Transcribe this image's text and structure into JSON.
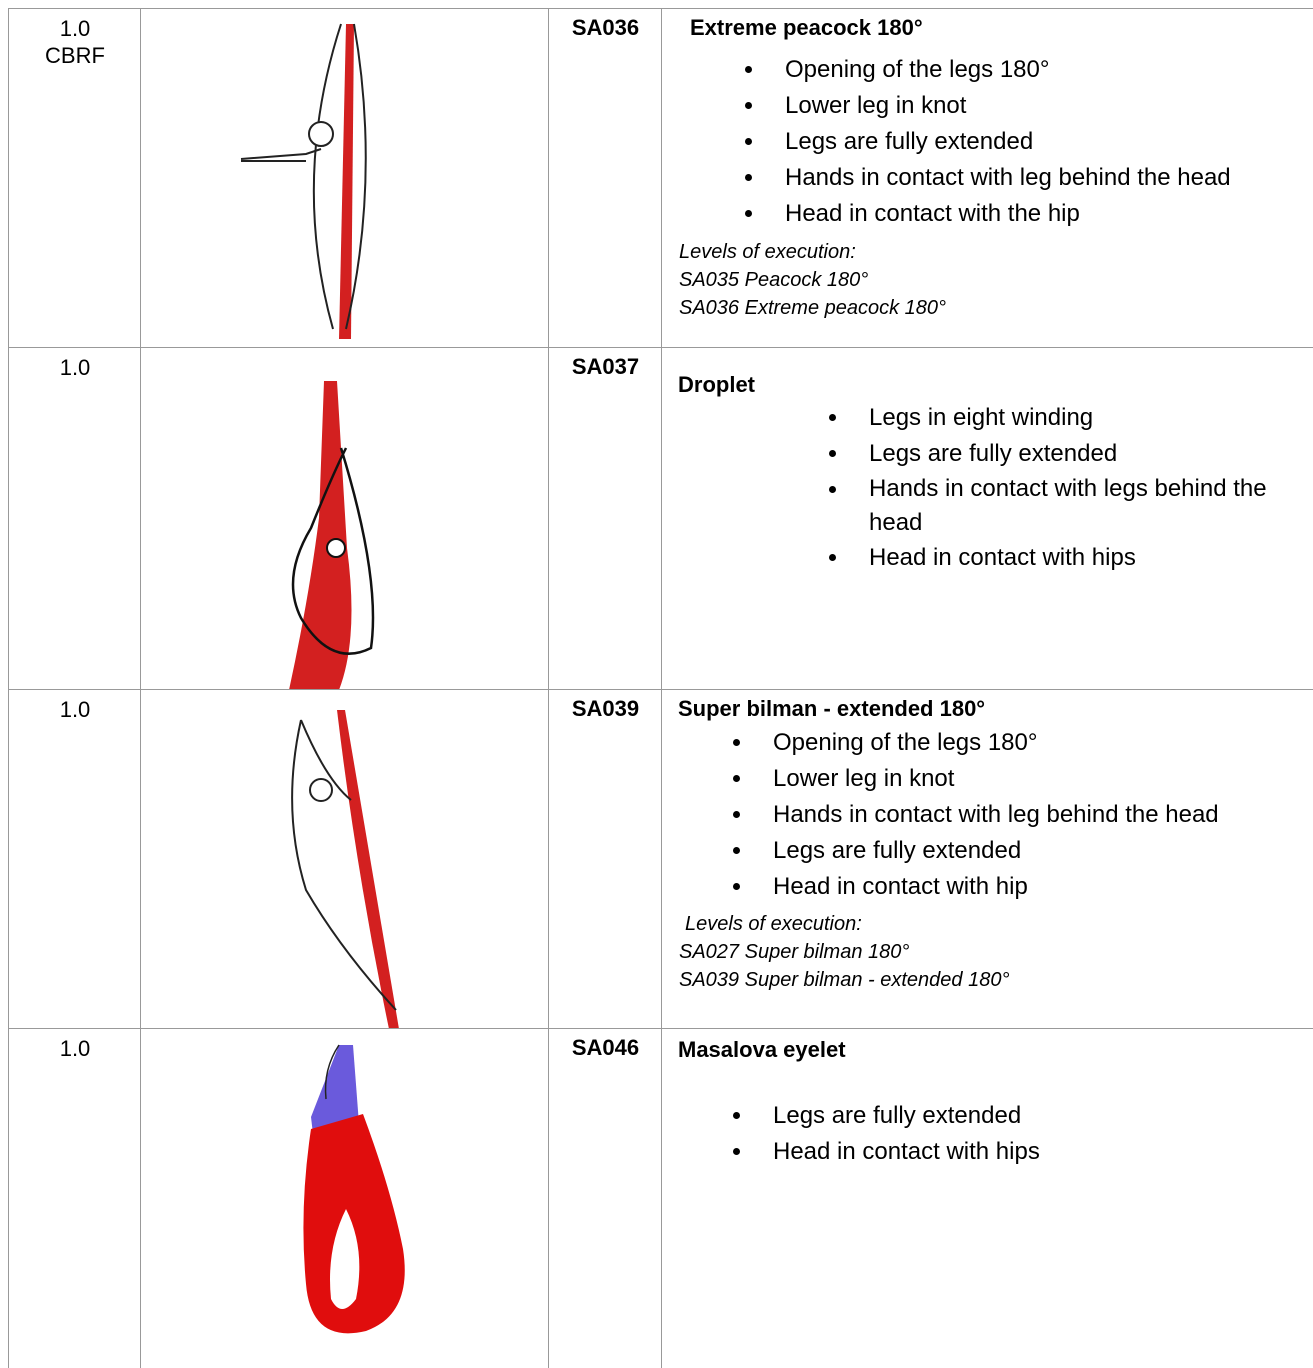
{
  "rows": [
    {
      "value": "1.0",
      "note": "CBRF",
      "code": "SA036",
      "title": "Extreme peacock 180°",
      "criteria": [
        "Opening of the legs 180°",
        "Lower leg in knot",
        "Legs are fully extended",
        "Hands in contact with leg behind the head",
        "Head in contact with the hip"
      ],
      "levels_heading": "Levels of execution:",
      "levels": [
        "SA035 Peacock 180°",
        "SA036 Extreme peacock 180°"
      ]
    },
    {
      "value": "1.0",
      "code": "SA037",
      "title": "Droplet",
      "criteria": [
        "Legs in eight winding",
        "Legs are fully extended",
        "Hands in contact with legs behind the head",
        "Head in contact with hips"
      ]
    },
    {
      "value": "1.0",
      "code": "SA039",
      "title": "Super bilman - extended 180°",
      "criteria": [
        "Opening of the legs 180°",
        "Lower leg in knot",
        "Hands in contact with leg behind the head",
        "Legs are fully extended",
        "Head in contact with hip"
      ],
      "levels_heading": "Levels of execution:",
      "levels": [
        "SA027 Super bilman 180°",
        "SA039 Super bilman - extended 180°"
      ]
    },
    {
      "value": "1.0",
      "code": "SA046",
      "title": "Masalova eyelet",
      "criteria": [
        "Legs are fully extended",
        "Head in contact with hips"
      ]
    }
  ]
}
